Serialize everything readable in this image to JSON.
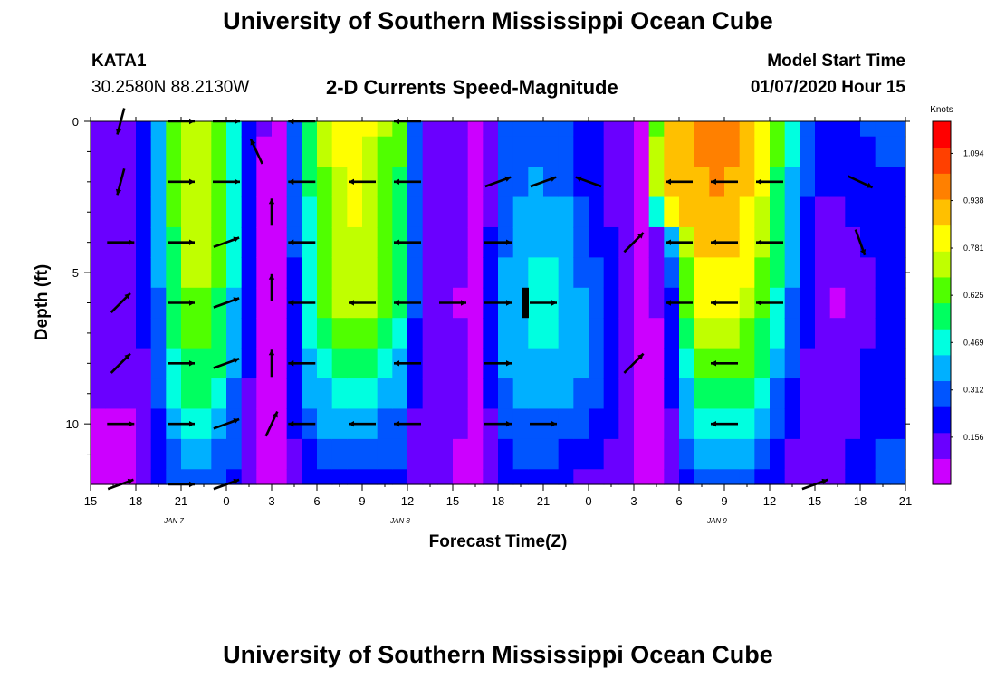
{
  "header": {
    "title": "University of Southern Mississippi Ocean Cube",
    "station": "KATA1",
    "coords": "30.2580N 88.2130W",
    "subtitle": "2-D Currents Speed-Magnitude",
    "model_start_label": "Model Start Time",
    "model_start_value": "01/07/2020 Hour 15"
  },
  "footer": {
    "title": "University of Southern Mississippi Ocean Cube"
  },
  "chart_data": {
    "type": "heatmap",
    "title": "2-D Currents Speed-Magnitude",
    "xlabel": "Forecast Time(Z)",
    "ylabel": "Depth (ft)",
    "x_ticks": [
      "15",
      "18",
      "21",
      "0",
      "3",
      "6",
      "9",
      "12",
      "15",
      "18",
      "21",
      "0",
      "3",
      "6",
      "9",
      "12",
      "15",
      "18",
      "21"
    ],
    "date_labels": [
      {
        "label": "JAN  7",
        "tick_index": 2
      },
      {
        "label": "JAN  8",
        "tick_index": 7
      },
      {
        "label": "JAN  9",
        "tick_index": 14
      }
    ],
    "xlim_hours": [
      0,
      54
    ],
    "y_ticks": [
      "0",
      "5",
      "10"
    ],
    "ylim_ft": [
      0,
      12
    ],
    "colorbar": {
      "unit": "Knots",
      "ticks": [
        "0.156",
        "0.312",
        "0.469",
        "0.625",
        "0.781",
        "0.938",
        "1.094"
      ],
      "range": [
        0,
        1.2
      ],
      "colors": [
        "#cc00ff",
        "#6a00ff",
        "#0000ff",
        "#0055ff",
        "#00b0ff",
        "#00ffe0",
        "#00ff60",
        "#50ff00",
        "#c0ff00",
        "#ffff00",
        "#ffc000",
        "#ff8000",
        "#ff4000",
        "#ff0000"
      ]
    },
    "time_hours": [
      0,
      1,
      2,
      3,
      4,
      5,
      6,
      7,
      8,
      9,
      10,
      11,
      12,
      13,
      14,
      15,
      16,
      17,
      18,
      19,
      20,
      21,
      22,
      23,
      24,
      25,
      26,
      27,
      28,
      29,
      30,
      31,
      32,
      33,
      34,
      35,
      36,
      37,
      38,
      39,
      40,
      41,
      42,
      43,
      44,
      45,
      46,
      47,
      48,
      49,
      50,
      51,
      52,
      53,
      54
    ],
    "depth_ft": [
      0,
      1,
      2,
      3,
      4,
      5,
      6,
      7,
      8,
      9,
      10,
      11,
      12
    ],
    "speed_profiles": [
      {
        "hour": 0,
        "values": [
          0.12,
          0.12,
          0.11,
          0.11,
          0.1,
          0.1,
          0.1,
          0.09,
          0.09,
          0.09,
          0.08,
          0.08,
          0.08
        ]
      },
      {
        "hour": 3,
        "values": [
          0.18,
          0.16,
          0.15,
          0.14,
          0.13,
          0.12,
          0.11,
          0.1,
          0.1,
          0.09,
          0.08,
          0.08,
          0.07
        ]
      },
      {
        "hour": 4.5,
        "values": [
          0.4,
          0.4,
          0.39,
          0.38,
          0.37,
          0.35,
          0.34,
          0.32,
          0.3,
          0.28,
          0.25,
          0.22,
          0.18
        ]
      },
      {
        "hour": 6,
        "values": [
          0.75,
          0.74,
          0.73,
          0.72,
          0.71,
          0.69,
          0.66,
          0.63,
          0.58,
          0.52,
          0.45,
          0.37,
          0.3
        ]
      },
      {
        "hour": 8,
        "values": [
          0.77,
          0.76,
          0.75,
          0.74,
          0.73,
          0.71,
          0.68,
          0.64,
          0.59,
          0.52,
          0.45,
          0.36,
          0.28
        ]
      },
      {
        "hour": 9.5,
        "values": [
          0.5,
          0.49,
          0.48,
          0.47,
          0.46,
          0.44,
          0.42,
          0.4,
          0.37,
          0.34,
          0.3,
          0.26,
          0.22
        ]
      },
      {
        "hour": 11,
        "values": [
          0.12,
          0.11,
          0.11,
          0.1,
          0.1,
          0.09,
          0.09,
          0.08,
          0.08,
          0.07,
          0.07,
          0.06,
          0.05
        ]
      },
      {
        "hour": 12,
        "values": [
          0.06,
          0.06,
          0.06,
          0.06,
          0.06,
          0.06,
          0.06,
          0.05,
          0.05,
          0.05,
          0.05,
          0.04,
          0.04
        ]
      },
      {
        "hour": 13,
        "values": [
          0.11,
          0.11,
          0.1,
          0.1,
          0.1,
          0.09,
          0.09,
          0.09,
          0.08,
          0.08,
          0.08,
          0.07,
          0.07
        ]
      },
      {
        "hour": 14,
        "values": [
          0.45,
          0.45,
          0.44,
          0.43,
          0.42,
          0.41,
          0.4,
          0.38,
          0.36,
          0.33,
          0.29,
          0.24,
          0.19
        ]
      },
      {
        "hour": 16,
        "values": [
          0.78,
          0.77,
          0.76,
          0.75,
          0.74,
          0.72,
          0.69,
          0.65,
          0.56,
          0.45,
          0.38,
          0.3,
          0.24
        ]
      },
      {
        "hour": 18,
        "values": [
          0.82,
          0.81,
          0.8,
          0.79,
          0.78,
          0.76,
          0.73,
          0.68,
          0.58,
          0.46,
          0.38,
          0.3,
          0.24
        ]
      },
      {
        "hour": 20.5,
        "values": [
          0.6,
          0.6,
          0.59,
          0.58,
          0.57,
          0.55,
          0.52,
          0.48,
          0.42,
          0.36,
          0.31,
          0.26,
          0.21
        ]
      },
      {
        "hour": 22,
        "values": [
          0.18,
          0.18,
          0.17,
          0.17,
          0.16,
          0.15,
          0.14,
          0.13,
          0.12,
          0.11,
          0.1,
          0.1,
          0.09
        ]
      },
      {
        "hour": 24,
        "values": [
          0.1,
          0.1,
          0.1,
          0.1,
          0.1,
          0.1,
          0.1,
          0.1,
          0.1,
          0.1,
          0.1,
          0.09,
          0.09
        ]
      },
      {
        "hour": 26,
        "values": [
          0.07,
          0.07,
          0.06,
          0.06,
          0.06,
          0.05,
          0.04,
          0.05,
          0.06,
          0.06,
          0.06,
          0.06,
          0.06
        ]
      },
      {
        "hour": 27,
        "values": [
          0.25,
          0.25,
          0.26,
          0.28,
          0.3,
          0.32,
          0.33,
          0.33,
          0.32,
          0.3,
          0.27,
          0.22,
          0.17
        ]
      },
      {
        "hour": 29,
        "values": [
          0.3,
          0.32,
          0.36,
          0.4,
          0.43,
          0.45,
          0.46,
          0.45,
          0.43,
          0.4,
          0.35,
          0.28,
          0.22
        ]
      },
      {
        "hour": 31,
        "values": [
          0.28,
          0.3,
          0.33,
          0.38,
          0.42,
          0.44,
          0.45,
          0.44,
          0.42,
          0.38,
          0.32,
          0.25,
          0.19
        ]
      },
      {
        "hour": 33,
        "values": [
          0.2,
          0.2,
          0.22,
          0.25,
          0.28,
          0.3,
          0.32,
          0.33,
          0.32,
          0.3,
          0.26,
          0.2,
          0.15
        ]
      },
      {
        "hour": 35,
        "values": [
          0.12,
          0.12,
          0.13,
          0.14,
          0.15,
          0.17,
          0.18,
          0.19,
          0.19,
          0.18,
          0.16,
          0.13,
          0.1
        ]
      },
      {
        "hour": 36.5,
        "values": [
          0.08,
          0.08,
          0.08,
          0.08,
          0.07,
          0.07,
          0.07,
          0.06,
          0.06,
          0.06,
          0.06,
          0.06,
          0.06
        ]
      },
      {
        "hour": 37,
        "values": [
          0.45,
          0.5,
          0.55,
          0.15,
          0.14,
          0.13,
          0.12,
          0.11,
          0.1,
          0.09,
          0.08,
          0.07,
          0.07
        ]
      },
      {
        "hour": 38,
        "values": [
          0.88,
          0.88,
          0.84,
          0.82,
          0.2,
          0.16,
          0.07,
          0.06,
          0.06,
          0.06,
          0.06,
          0.06,
          0.06
        ]
      },
      {
        "hour": 40,
        "values": [
          0.95,
          0.94,
          0.92,
          0.9,
          0.87,
          0.82,
          0.78,
          0.72,
          0.65,
          0.55,
          0.44,
          0.36,
          0.28
        ]
      },
      {
        "hour": 42,
        "values": [
          1.0,
          0.98,
          0.96,
          0.93,
          0.89,
          0.84,
          0.8,
          0.74,
          0.68,
          0.58,
          0.47,
          0.38,
          0.3
        ]
      },
      {
        "hour": 44,
        "values": [
          0.9,
          0.88,
          0.86,
          0.83,
          0.8,
          0.76,
          0.72,
          0.66,
          0.6,
          0.52,
          0.42,
          0.34,
          0.27
        ]
      },
      {
        "hour": 46,
        "values": [
          0.55,
          0.53,
          0.51,
          0.49,
          0.47,
          0.44,
          0.4,
          0.36,
          0.31,
          0.26,
          0.22,
          0.18,
          0.15
        ]
      },
      {
        "hour": 48,
        "values": [
          0.2,
          0.19,
          0.18,
          0.17,
          0.16,
          0.14,
          0.12,
          0.11,
          0.1,
          0.1,
          0.09,
          0.09,
          0.08
        ]
      },
      {
        "hour": 50,
        "values": [
          0.22,
          0.2,
          0.18,
          0.16,
          0.13,
          0.1,
          0.07,
          0.08,
          0.1,
          0.12,
          0.13,
          0.15,
          0.16
        ]
      },
      {
        "hour": 52,
        "values": [
          0.28,
          0.26,
          0.24,
          0.22,
          0.2,
          0.18,
          0.17,
          0.18,
          0.2,
          0.22,
          0.23,
          0.25,
          0.26
        ]
      },
      {
        "hour": 54,
        "values": [
          0.3,
          0.28,
          0.26,
          0.24,
          0.22,
          0.2,
          0.19,
          0.2,
          0.22,
          0.24,
          0.26,
          0.28,
          0.3
        ]
      }
    ],
    "current_vectors": [
      {
        "hour": 2,
        "depth": 0,
        "dir": "ssw"
      },
      {
        "hour": 2,
        "depth": 2,
        "dir": "ssw"
      },
      {
        "hour": 2,
        "depth": 4,
        "dir": "e"
      },
      {
        "hour": 2,
        "depth": 6,
        "dir": "ne"
      },
      {
        "hour": 2,
        "depth": 8,
        "dir": "ne"
      },
      {
        "hour": 2,
        "depth": 10,
        "dir": "e"
      },
      {
        "hour": 2,
        "depth": 12,
        "dir": "ene"
      },
      {
        "hour": 6,
        "depth": 0,
        "dir": "e"
      },
      {
        "hour": 6,
        "depth": 2,
        "dir": "e"
      },
      {
        "hour": 6,
        "depth": 4,
        "dir": "e"
      },
      {
        "hour": 6,
        "depth": 6,
        "dir": "e"
      },
      {
        "hour": 6,
        "depth": 8,
        "dir": "e"
      },
      {
        "hour": 6,
        "depth": 10,
        "dir": "e"
      },
      {
        "hour": 6,
        "depth": 12,
        "dir": "e"
      },
      {
        "hour": 9,
        "depth": 0,
        "dir": "e"
      },
      {
        "hour": 9,
        "depth": 2,
        "dir": "e"
      },
      {
        "hour": 9,
        "depth": 4,
        "dir": "ene"
      },
      {
        "hour": 9,
        "depth": 6,
        "dir": "ene"
      },
      {
        "hour": 9,
        "depth": 8,
        "dir": "ene"
      },
      {
        "hour": 9,
        "depth": 10,
        "dir": "ene"
      },
      {
        "hour": 9,
        "depth": 12,
        "dir": "ene"
      },
      {
        "hour": 11,
        "depth": 1,
        "dir": "nnw"
      },
      {
        "hour": 12,
        "depth": 3,
        "dir": "n"
      },
      {
        "hour": 12,
        "depth": 5.5,
        "dir": "n"
      },
      {
        "hour": 12,
        "depth": 8,
        "dir": "n"
      },
      {
        "hour": 12,
        "depth": 10,
        "dir": "nne"
      },
      {
        "hour": 14,
        "depth": 0,
        "dir": "w"
      },
      {
        "hour": 14,
        "depth": 2,
        "dir": "w"
      },
      {
        "hour": 14,
        "depth": 4,
        "dir": "w"
      },
      {
        "hour": 14,
        "depth": 6,
        "dir": "w"
      },
      {
        "hour": 14,
        "depth": 8,
        "dir": "w"
      },
      {
        "hour": 14,
        "depth": 10,
        "dir": "w"
      },
      {
        "hour": 18,
        "depth": 2,
        "dir": "w"
      },
      {
        "hour": 18,
        "depth": 6,
        "dir": "w"
      },
      {
        "hour": 18,
        "depth": 10,
        "dir": "w"
      },
      {
        "hour": 21,
        "depth": 0,
        "dir": "w"
      },
      {
        "hour": 21,
        "depth": 2,
        "dir": "w"
      },
      {
        "hour": 21,
        "depth": 4,
        "dir": "w"
      },
      {
        "hour": 21,
        "depth": 6,
        "dir": "w"
      },
      {
        "hour": 21,
        "depth": 8,
        "dir": "w"
      },
      {
        "hour": 21,
        "depth": 10,
        "dir": "w"
      },
      {
        "hour": 24,
        "depth": 6,
        "dir": "e"
      },
      {
        "hour": 27,
        "depth": 2,
        "dir": "ene"
      },
      {
        "hour": 27,
        "depth": 4,
        "dir": "e"
      },
      {
        "hour": 27,
        "depth": 6,
        "dir": "e"
      },
      {
        "hour": 27,
        "depth": 8,
        "dir": "e"
      },
      {
        "hour": 27,
        "depth": 10,
        "dir": "e"
      },
      {
        "hour": 30,
        "depth": 2,
        "dir": "ene"
      },
      {
        "hour": 30,
        "depth": 6,
        "dir": "e"
      },
      {
        "hour": 30,
        "depth": 10,
        "dir": "e"
      },
      {
        "hour": 33,
        "depth": 2,
        "dir": "wnw"
      },
      {
        "hour": 36,
        "depth": 4,
        "dir": "ne"
      },
      {
        "hour": 36,
        "depth": 8,
        "dir": "ne"
      },
      {
        "hour": 39,
        "depth": 2,
        "dir": "w"
      },
      {
        "hour": 39,
        "depth": 4,
        "dir": "w"
      },
      {
        "hour": 39,
        "depth": 6,
        "dir": "w"
      },
      {
        "hour": 42,
        "depth": 2,
        "dir": "w"
      },
      {
        "hour": 42,
        "depth": 4,
        "dir": "w"
      },
      {
        "hour": 42,
        "depth": 6,
        "dir": "w"
      },
      {
        "hour": 42,
        "depth": 8,
        "dir": "w"
      },
      {
        "hour": 42,
        "depth": 10,
        "dir": "w"
      },
      {
        "hour": 45,
        "depth": 2,
        "dir": "w"
      },
      {
        "hour": 45,
        "depth": 4,
        "dir": "w"
      },
      {
        "hour": 45,
        "depth": 6,
        "dir": "w"
      },
      {
        "hour": 48,
        "depth": 12,
        "dir": "ene"
      },
      {
        "hour": 51,
        "depth": 4,
        "dir": "sse"
      },
      {
        "hour": 51,
        "depth": 2,
        "dir": "ese"
      }
    ]
  }
}
